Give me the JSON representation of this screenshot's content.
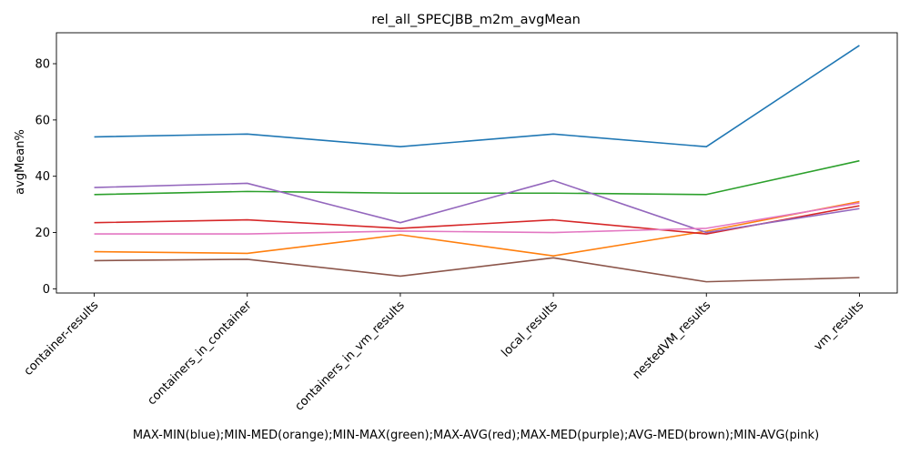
{
  "chart_data": {
    "type": "line",
    "title": "rel_all_SPECJBB_m2m_avgMean",
    "xlabel": "MAX-MIN(blue);MIN-MED(orange);MIN-MAX(green);MAX-AVG(red);MAX-MED(purple);AVG-MED(brown);MIN-AVG(pink)",
    "ylabel": "avgMean%",
    "categories": [
      "container-results",
      "containers_in_container",
      "containers_in_vm_results",
      "local_results",
      "nestedVM_results",
      "vm_results"
    ],
    "yticks": [
      0,
      20,
      40,
      60,
      80
    ],
    "ylim": [
      -1.5,
      91
    ],
    "grid": false,
    "series": [
      {
        "color": "#1f77b4",
        "values": [
          54.0,
          55.0,
          50.5,
          55.0,
          50.5,
          86.5
        ]
      },
      {
        "color": "#ff7f0e",
        "values": [
          13.2,
          12.6,
          19.2,
          11.7,
          20.5,
          31.0
        ]
      },
      {
        "color": "#2ca02c",
        "values": [
          33.5,
          34.6,
          34.0,
          34.0,
          33.5,
          45.5
        ]
      },
      {
        "color": "#d62728",
        "values": [
          23.5,
          24.5,
          21.5,
          24.5,
          19.5,
          29.5
        ]
      },
      {
        "color": "#9467bd",
        "values": [
          36.0,
          37.5,
          23.5,
          38.5,
          20.0,
          28.5
        ]
      },
      {
        "color": "#8c564b",
        "values": [
          10.0,
          10.5,
          4.5,
          11.0,
          2.5,
          4.0
        ]
      },
      {
        "color": "#e377c2",
        "values": [
          19.5,
          19.5,
          20.5,
          20.0,
          21.5,
          30.5
        ]
      }
    ]
  }
}
